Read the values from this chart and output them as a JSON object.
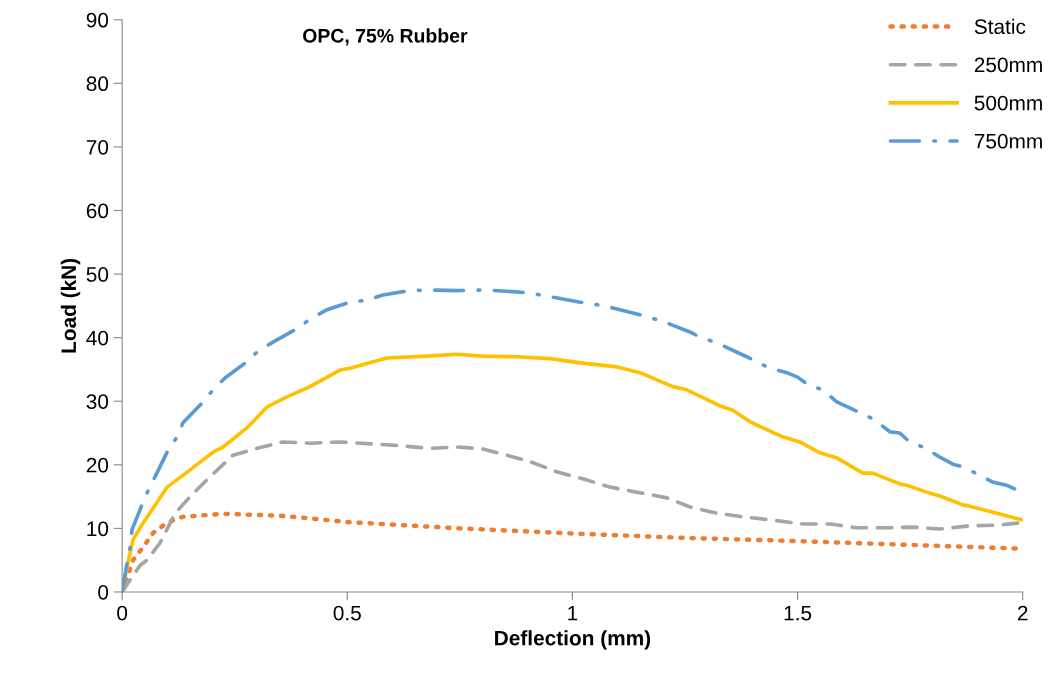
{
  "chart_data": {
    "type": "line",
    "title": "OPC, 75% Rubber",
    "xlabel": "Deflection (mm)",
    "ylabel": "Load (kN)",
    "xlim": [
      0,
      2
    ],
    "xticks": [
      0,
      0.5,
      1,
      1.5,
      2
    ],
    "ylim": [
      0,
      90
    ],
    "yticks": [
      0,
      10,
      20,
      30,
      40,
      50,
      60,
      70,
      80,
      90
    ],
    "grid": false,
    "legend": "top right",
    "marker": "none",
    "series": [
      {
        "name": "Static",
        "color": "#ed7d31",
        "line_style": "dotted",
        "x": [
          0,
          0.013,
          0.024,
          0.047,
          0.069,
          0.1,
          0.133,
          0.224,
          0.35,
          0.4,
          0.5,
          0.75,
          1.0,
          1.25,
          1.5,
          1.75,
          2.0
        ],
        "values": [
          0,
          2.7,
          5.0,
          7.1,
          9.3,
          10.9,
          11.8,
          12.3,
          12.0,
          11.7,
          11.0,
          10.0,
          9.2,
          8.5,
          8.0,
          7.4,
          6.8
        ]
      },
      {
        "name": "250mm",
        "color": "#a5a5a5",
        "line_style": "dashed",
        "x": [
          0,
          0.013,
          0.04,
          0.055,
          0.084,
          0.118,
          0.151,
          0.195,
          0.246,
          0.3,
          0.357,
          0.417,
          0.484,
          0.6,
          0.684,
          0.744,
          0.8,
          0.855,
          0.906,
          0.965,
          1.023,
          1.083,
          1.143,
          1.21,
          1.26,
          1.32,
          1.38,
          1.445,
          1.512,
          1.572,
          1.631,
          1.698,
          1.756,
          1.816,
          1.882,
          1.942,
          2.0
        ],
        "values": [
          0,
          1.4,
          4.2,
          5.0,
          7.7,
          12.4,
          15.0,
          18.1,
          21.5,
          22.6,
          23.6,
          23.4,
          23.6,
          23.1,
          22.6,
          22.8,
          22.5,
          21.5,
          20.5,
          18.9,
          17.8,
          16.5,
          15.7,
          14.8,
          13.4,
          12.4,
          11.8,
          11.3,
          10.7,
          10.7,
          10.1,
          10.1,
          10.2,
          9.9,
          10.4,
          10.5,
          10.9
        ]
      },
      {
        "name": "500mm",
        "color": "#ffc000",
        "line_style": "solid",
        "x": [
          0,
          0.013,
          0.024,
          0.047,
          0.069,
          0.1,
          0.151,
          0.202,
          0.224,
          0.277,
          0.322,
          0.366,
          0.417,
          0.484,
          0.506,
          0.588,
          0.677,
          0.744,
          0.8,
          0.877,
          0.95,
          1.023,
          1.099,
          1.15,
          1.223,
          1.254,
          1.327,
          1.356,
          1.394,
          1.423,
          1.467,
          1.505,
          1.549,
          1.587,
          1.645,
          1.667,
          1.727,
          1.742,
          1.787,
          1.816,
          1.867,
          1.882,
          1.964,
          2.0
        ],
        "values": [
          0,
          4.6,
          8.2,
          10.9,
          13.2,
          16.5,
          19.2,
          22.0,
          22.8,
          25.8,
          29.1,
          30.7,
          32.3,
          34.9,
          35.2,
          36.8,
          37.1,
          37.4,
          37.1,
          37.0,
          36.7,
          36.0,
          35.4,
          34.5,
          32.3,
          31.8,
          29.3,
          28.6,
          26.8,
          25.8,
          24.4,
          23.6,
          21.9,
          21.1,
          18.7,
          18.7,
          17.0,
          16.8,
          15.7,
          15.1,
          13.7,
          13.5,
          12.0,
          11.3
        ]
      },
      {
        "name": "750mm",
        "color": "#5b9bd5",
        "line_style": "dashdot",
        "x": [
          0,
          0.011,
          0.018,
          0.022,
          0.044,
          0.058,
          0.073,
          0.102,
          0.122,
          0.135,
          0.18,
          0.202,
          0.229,
          0.277,
          0.302,
          0.335,
          0.388,
          0.417,
          0.455,
          0.506,
          0.544,
          0.579,
          0.639,
          0.673,
          0.744,
          0.806,
          0.877,
          0.906,
          0.939,
          1.023,
          1.072,
          1.15,
          1.199,
          1.261,
          1.283,
          1.32,
          1.387,
          1.438,
          1.476,
          1.5,
          1.523,
          1.556,
          1.587,
          1.638,
          1.671,
          1.705,
          1.727,
          1.749,
          1.782,
          1.816,
          1.845,
          1.867,
          1.898,
          1.933,
          1.964,
          1.989
        ],
        "values": [
          0,
          4.6,
          7.1,
          9.8,
          13.7,
          16.0,
          18.1,
          22.3,
          24.4,
          26.6,
          29.9,
          31.8,
          33.7,
          36.2,
          37.9,
          39.3,
          41.4,
          42.9,
          44.4,
          45.6,
          45.9,
          46.7,
          47.4,
          47.5,
          47.4,
          47.5,
          47.2,
          47.0,
          46.6,
          45.5,
          45.0,
          43.6,
          42.6,
          40.9,
          40.1,
          39.2,
          37.0,
          35.2,
          34.5,
          33.8,
          32.6,
          31.8,
          29.9,
          28.2,
          27.1,
          25.2,
          25.0,
          23.6,
          22.7,
          21.2,
          20.1,
          19.7,
          18.6,
          17.3,
          16.8,
          16.0
        ]
      }
    ]
  }
}
